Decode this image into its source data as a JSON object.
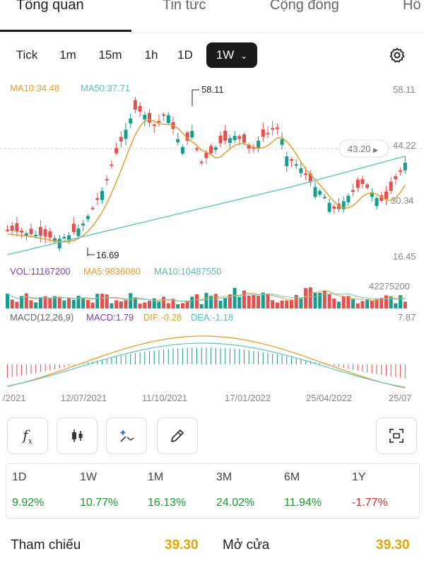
{
  "tabs": [
    {
      "label": "Tổng quan",
      "active": true
    },
    {
      "label": "Tin tức",
      "active": false
    },
    {
      "label": "Cộng đồng",
      "active": false
    },
    {
      "label": "Hồ",
      "active": false
    }
  ],
  "periods": [
    "Tick",
    "1m",
    "15m",
    "1h",
    "1D",
    "1W"
  ],
  "active_period": "1W",
  "chart": {
    "ma_legend": {
      "ma10": "MA10:34.48",
      "ma50": "MA50:37.71"
    },
    "price_axis": {
      "top": "58.11",
      "mid": "44.22",
      "low": "30.34",
      "bottom": "16.45"
    },
    "high_marker": "58.11",
    "low_marker": "16.69",
    "current_price": "43.20",
    "vol_legend": {
      "vol": "VOL:11167200",
      "ma5": "MA5:9836080",
      "ma10": "MA10:10487550"
    },
    "vol_max": "42275200",
    "macd_legend": {
      "macd_params": "MACD(12,26,9)",
      "macd": "MACD:1.79",
      "dif": "DIF:-0.28",
      "dea": "DEA:-1.18"
    },
    "macd_max": "7.87",
    "dates": [
      "/2021",
      "12/07/2021",
      "11/10/2021",
      "17/01/2022",
      "25/04/2022",
      "25/07"
    ]
  },
  "colors": {
    "up": "#1a9c8c",
    "down": "#e5504f",
    "ma10": "#e0a030",
    "ma50": "#6cc6bf",
    "accent": "#e0a800",
    "green": "#1a9c2c",
    "red": "#c03030"
  },
  "tools": [
    "function-icon",
    "candlestick-icon",
    "magic-icon",
    "pencil-icon",
    "screenshot-icon"
  ],
  "performance": [
    {
      "label": "1D",
      "value": "9.92%",
      "dir": "up"
    },
    {
      "label": "1W",
      "value": "10.77%",
      "dir": "up"
    },
    {
      "label": "1M",
      "value": "16.13%",
      "dir": "up"
    },
    {
      "label": "3M",
      "value": "24.02%",
      "dir": "up"
    },
    {
      "label": "6M",
      "value": "11.94%",
      "dir": "up"
    },
    {
      "label": "1Y",
      "value": "-1.77%",
      "dir": "down"
    }
  ],
  "reference": {
    "label": "Tham chiếu",
    "value": "39.30"
  },
  "open": {
    "label": "Mở cửa",
    "value": "39.30"
  }
}
